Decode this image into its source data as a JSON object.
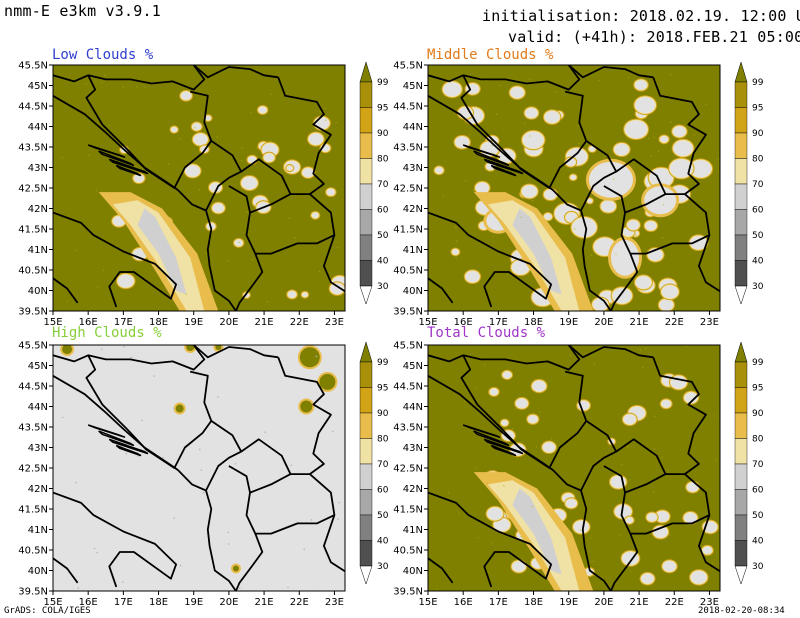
{
  "header": {
    "model": "nmm-E e3km v3.9.1",
    "init": "initialisation: 2018.02.19. 12:00 UTC",
    "valid": "valid: (+41h): 2018.FEB.21 05:00 UTC"
  },
  "axes": {
    "lat_labels": [
      "45.5N",
      "45N",
      "44.5N",
      "44N",
      "43.5N",
      "43N",
      "42.5N",
      "42N",
      "41.5N",
      "41N",
      "40.5N",
      "40N",
      "39.5N"
    ],
    "lon_labels": [
      "15E",
      "16E",
      "17E",
      "18E",
      "19E",
      "20E",
      "21E",
      "22E",
      "23E"
    ]
  },
  "colorbar": {
    "levels": [
      "99",
      "95",
      "90",
      "80",
      "70",
      "60",
      "50",
      "40",
      "30"
    ],
    "colors": [
      "#7f7f00",
      "#a8900a",
      "#d1a317",
      "#e8bd4c",
      "#f0e2a5",
      "#d0d0d0",
      "#a8a8a8",
      "#808080",
      "#505050"
    ]
  },
  "panels": [
    {
      "title": "Low Clouds %",
      "title_color": "#2f3fd0",
      "fill": "#7f7f00",
      "base": "#e2e2e2"
    },
    {
      "title": "Middle Clouds %",
      "title_color": "#e07a1a",
      "fill": "#7f7f00",
      "base": "#e2e2e2"
    },
    {
      "title": "High Clouds %",
      "title_color": "#86cf3b",
      "fill": "#e2e2e2",
      "base": "#7f7f00"
    },
    {
      "title": "Total Clouds %",
      "title_color": "#a035c8",
      "fill": "#7f7f00",
      "base": "#e2e2e2"
    }
  ],
  "footer": {
    "left": "GrADS: COLA/IGES",
    "right": "2018-02-20-08:34"
  }
}
